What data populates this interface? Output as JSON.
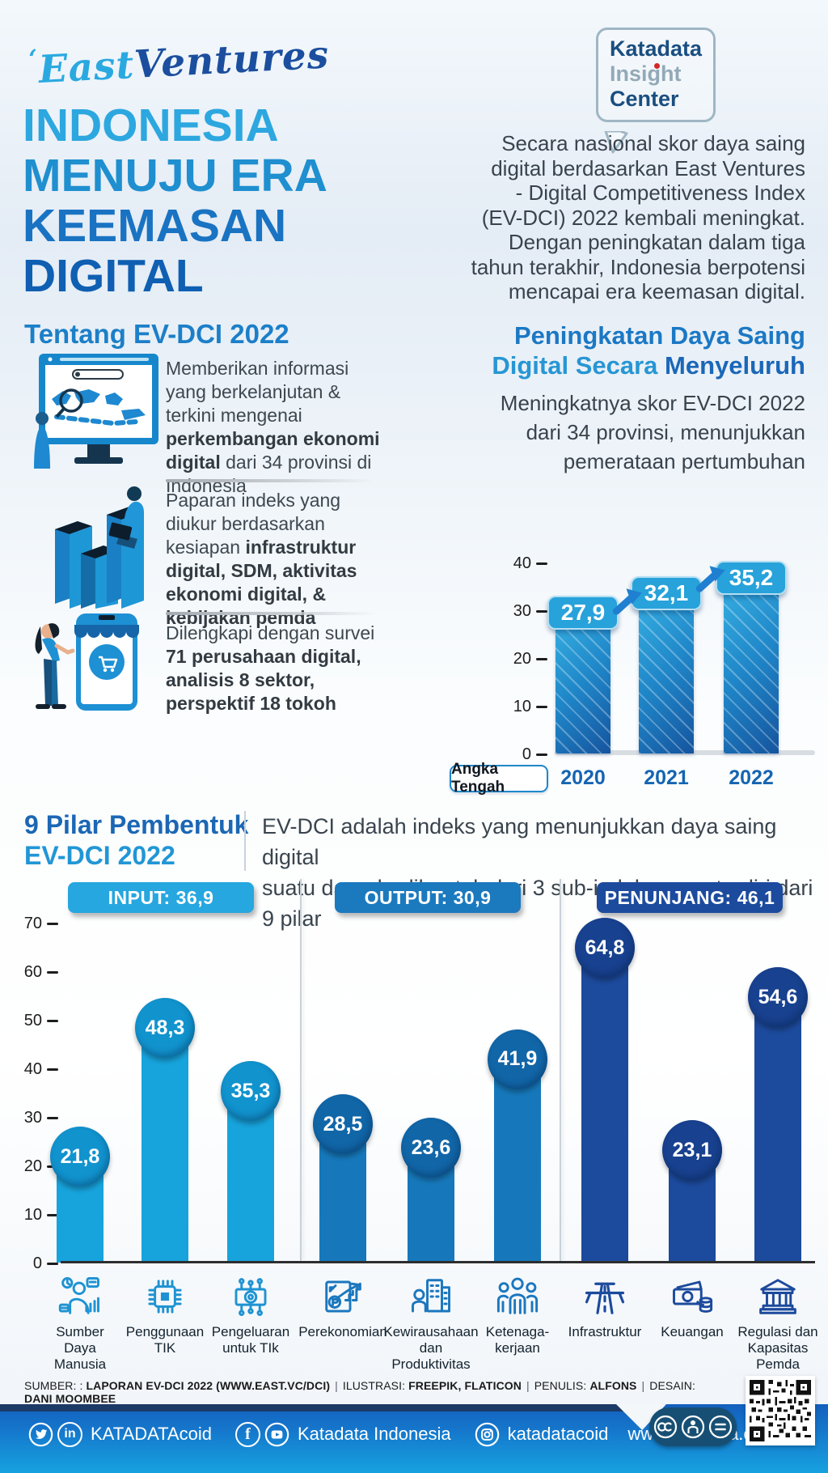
{
  "header": {
    "ev_logo": {
      "mark": "ʻ",
      "word1": "East",
      "word2": "Ventures"
    },
    "kic_logo": {
      "line1": "Katadata",
      "line2": "Insight",
      "line3": "Center"
    },
    "title_lines": [
      "INDONESIA",
      "MENUJU ERA",
      "KEEMASAN",
      "DIGITAL"
    ],
    "intro": "Secara nasional skor daya saing\ndigital berdasarkan East Ventures\n- Digital Competitiveness Index\n(EV-DCI) 2022 kembali meningkat.\nDengan peningkatan dalam tiga\ntahun terakhir, Indonesia berpotensi\nmencapai era keemasan digital."
  },
  "tentang": {
    "heading": "Tentang EV-DCI 2022",
    "items": [
      {
        "pre": "Memberikan informasi yang berkelanjutan & terkini mengenai ",
        "bold": "perkembangan ekonomi digital",
        "post": " dari 34 provinsi di Indonesia"
      },
      {
        "pre": "Paparan indeks yang diukur berdasarkan kesiapan ",
        "bold": "infrastruktur digital, SDM, aktivitas ekonomi digital, & kebijakan pemda",
        "post": ""
      },
      {
        "pre": "Dilengkapi dengan survei ",
        "bold": "71 perusahaan digital, analisis 8 sektor, perspektif 18 tokoh",
        "post": ""
      }
    ]
  },
  "peningkatan": {
    "heading_part1": "Peningkatan Daya Saing",
    "heading_part2": "Digital Secara ",
    "heading_part3": "Menyeluruh",
    "sub": "Meningkatnya skor EV-DCI 2022\ndari 34 provinsi, menunjukkan\npemerataan pertumbuhan"
  },
  "pilar": {
    "heading_line1": "9 Pilar Pembentuk",
    "heading_line2": "EV-DCI 2022",
    "desc": "EV-DCI adalah indeks yang menunjukkan daya saing digital\nsuatu daerah; dibentuk dari 3 sub-indeks yang terdiri dari 9 pilar"
  },
  "source": {
    "l1": "SUMBER: :",
    "v1": "LAPORAN EV-DCI 2022 (WWW.EAST.VC/DCI)",
    "sep": "|",
    "l2": "ILUSTRASI:",
    "v2": "FREEPIK, FLATICON",
    "l3": "PENULIS:",
    "v3": "ALFONS",
    "l4": "DESAIN:",
    "v4": "DANI MOOMBEE"
  },
  "footer": {
    "handle_twitter_linkedin": "KATADATAcoid",
    "handle_fb_yt": "Katadata Indonesia",
    "handle_instagram": "katadatacoid",
    "website": "www.katadata.co.id",
    "linkedin_glyph": "in",
    "facebook_glyph": "f"
  },
  "chart_data": [
    {
      "type": "bar",
      "title": "Peningkatan Daya Saing Digital Secara Menyeluruh",
      "note_label": "Angka Tengah",
      "categories": [
        "2020",
        "2021",
        "2022"
      ],
      "values": [
        27.9,
        32.1,
        35.2
      ],
      "value_labels": [
        "27,9",
        "32,1",
        "35,2"
      ],
      "ylim": [
        0,
        40
      ],
      "ytick_labels": [
        "40",
        "30",
        "20",
        "10",
        "0"
      ],
      "grid": false,
      "legend_position": "none",
      "bar_colors": [
        "#35aee1",
        "#15549e"
      ]
    },
    {
      "type": "bar",
      "title": "9 Pilar Pembentuk EV-DCI 2022",
      "ylim": [
        0,
        70
      ],
      "ytick_labels": [
        "70",
        "60",
        "50",
        "40",
        "30",
        "20",
        "10",
        "0"
      ],
      "grid": false,
      "groups": [
        {
          "name": "INPUT",
          "score": 36.9,
          "label": "INPUT: 36,9",
          "color": "#26a7df"
        },
        {
          "name": "OUTPUT",
          "score": 30.9,
          "label": "OUTPUT: 30,9",
          "color": "#1b79be"
        },
        {
          "name": "PENUNJANG",
          "score": 46.1,
          "label": "PENUNJANG: 46,1",
          "color": "#1c4b9e"
        }
      ],
      "categories": [
        "Sumber Daya Manusia",
        "Penggunaan TIK",
        "Pengeluaran untuk TIk",
        "Perekonomian",
        "Kewirausahaan dan Produktivitas",
        "Ketenagakerjaan",
        "Infrastruktur",
        "Keuangan",
        "Regulasi dan Kapasitas Pemda"
      ],
      "category_display": [
        "Sumber\nDaya\nManusia",
        "Penggunaan\nTIK",
        "Pengeluaran\nuntuk TIk",
        "Perekonomian",
        "Kewirausahaan\ndan\nProduktivitas",
        "Ketenaga-\nkerjaan",
        "Infrastruktur",
        "Keuangan",
        "Regulasi dan\nKapasitas\nPemda"
      ],
      "values": [
        21.8,
        48.3,
        35.3,
        28.5,
        23.6,
        41.9,
        64.8,
        23.1,
        54.6
      ],
      "value_labels": [
        "21,8",
        "48,3",
        "35,3",
        "28,5",
        "23,6",
        "41,9",
        "64,8",
        "23,1",
        "54,6"
      ],
      "icons": [
        "people-analytics-icon",
        "chip-icon",
        "money-circuit-icon",
        "economy-growth-icon",
        "entrepreneur-building-icon",
        "workforce-icon",
        "highway-icon",
        "cash-coins-icon",
        "government-building-icon"
      ]
    }
  ]
}
